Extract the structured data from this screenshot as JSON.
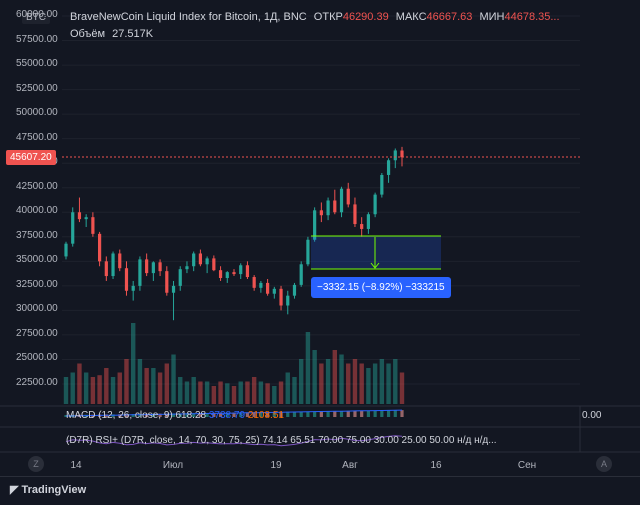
{
  "header": {
    "symbol_badge": "BTC",
    "title": "BraveNewCoin Liquid Index for Bitcoin, 1Д, BNC",
    "open_label": "ОТКР",
    "open_value": "46290.39",
    "high_label": "МАКС",
    "high_value": "46667.63",
    "low_label": "МИН",
    "low_value": "44678.35...",
    "volume_label": "Объём",
    "volume_value": "27.517K"
  },
  "price_axis": [
    "60000.00",
    "57500.00",
    "55000.00",
    "52500.00",
    "50000.00",
    "47500.00",
    "45000.00",
    "42500.00",
    "40000.00",
    "37500.00",
    "35000.00",
    "32500.00",
    "30000.00",
    "27500.00",
    "25000.00",
    "22500.00"
  ],
  "last_price": "45607.20",
  "measure_label": "−3332.15 (−8.92%) −333215",
  "macd_label": "MACD (12, 26, close, 9)",
  "macd_values": [
    "618.28",
    "3738.79",
    "2108.51"
  ],
  "rsi_label": "(D7R) RSI+ (D7R, close, 14, 70, 30, 75, 25)",
  "rsi_values": [
    "74.14",
    "65.51",
    "70.00",
    "75.00",
    "30.00",
    "25.00",
    "50.00",
    "н/д",
    "н/д..."
  ],
  "macd_axis_value": "0.00",
  "time_axis": [
    "14",
    "Июл",
    "19",
    "Авг",
    "16",
    "Сен"
  ],
  "footer_logo": "TradingView",
  "corner_z": "Z",
  "corner_a": "A",
  "colors": {
    "up": "#26a69a",
    "down": "#ef5350",
    "bg": "#131722",
    "accent": "#2962ff"
  },
  "chart_data": {
    "type": "candlestick",
    "candles": [
      [
        35500,
        37000,
        35200,
        36800
      ],
      [
        36800,
        40500,
        36500,
        40000
      ],
      [
        40000,
        41500,
        39000,
        39300
      ],
      [
        39300,
        39800,
        38500,
        39500
      ],
      [
        39500,
        40000,
        37500,
        37800
      ],
      [
        37800,
        38000,
        34500,
        35000
      ],
      [
        35000,
        35500,
        33000,
        33500
      ],
      [
        33500,
        36000,
        33200,
        35800
      ],
      [
        35800,
        36200,
        34000,
        34300
      ],
      [
        34300,
        35000,
        31500,
        32000
      ],
      [
        32000,
        33000,
        31000,
        32500
      ],
      [
        32500,
        35500,
        32000,
        35200
      ],
      [
        35200,
        35800,
        33500,
        33800
      ],
      [
        33800,
        35000,
        33000,
        34900
      ],
      [
        34900,
        35200,
        33500,
        34000
      ],
      [
        34000,
        34500,
        31500,
        31800
      ],
      [
        31800,
        33000,
        29000,
        32500
      ],
      [
        32500,
        34500,
        32000,
        34200
      ],
      [
        34200,
        35000,
        33800,
        34500
      ],
      [
        34500,
        36000,
        34000,
        35800
      ],
      [
        35800,
        36200,
        34500,
        34700
      ],
      [
        34700,
        35500,
        33800,
        35300
      ],
      [
        35300,
        35600,
        34000,
        34100
      ],
      [
        34100,
        34500,
        33000,
        33300
      ],
      [
        33300,
        34000,
        32800,
        33900
      ],
      [
        33900,
        34200,
        33500,
        33700
      ],
      [
        33700,
        34800,
        33200,
        34600
      ],
      [
        34600,
        35000,
        33200,
        33400
      ],
      [
        33400,
        33600,
        32000,
        32300
      ],
      [
        32300,
        33000,
        31800,
        32800
      ],
      [
        32800,
        33200,
        31500,
        31700
      ],
      [
        31700,
        32400,
        31200,
        32200
      ],
      [
        32200,
        32500,
        30000,
        30500
      ],
      [
        30500,
        32000,
        29600,
        31500
      ],
      [
        31500,
        32800,
        31200,
        32600
      ],
      [
        32600,
        35000,
        32400,
        34700
      ],
      [
        34700,
        37500,
        34500,
        37200
      ],
      [
        37200,
        40500,
        37000,
        40200
      ],
      [
        40200,
        41000,
        39000,
        39700
      ],
      [
        39700,
        41500,
        39200,
        41200
      ],
      [
        41200,
        42300,
        39800,
        40000
      ],
      [
        40000,
        42600,
        39500,
        42400
      ],
      [
        42400,
        43000,
        40500,
        40800
      ],
      [
        40800,
        41500,
        38500,
        38800
      ],
      [
        38800,
        39500,
        37500,
        38300
      ],
      [
        38300,
        40000,
        37800,
        39800
      ],
      [
        39800,
        42000,
        39500,
        41800
      ],
      [
        41800,
        44000,
        41500,
        43800
      ],
      [
        43800,
        45500,
        43000,
        45300
      ],
      [
        45300,
        46500,
        44500,
        46300
      ],
      [
        46290,
        46668,
        44678,
        45607
      ]
    ],
    "volumes": [
      3,
      3.5,
      4.5,
      3.5,
      3,
      3.2,
      4,
      3,
      3.5,
      5,
      9,
      5,
      4,
      4,
      3.5,
      4.5,
      5.5,
      3,
      2.5,
      3,
      2.5,
      2.5,
      2,
      2.5,
      2.3,
      2,
      2.5,
      2.5,
      3,
      2.5,
      2.3,
      2,
      2.5,
      3.5,
      3,
      5,
      8,
      6,
      4.5,
      5,
      6,
      5.5,
      4.5,
      5,
      4.5,
      4,
      4.5,
      5,
      4.5,
      5,
      3.5
    ],
    "measure": {
      "from": 37300,
      "to": 33968,
      "change": -3332.15,
      "percent": -8.92
    },
    "ylim": [
      20000,
      61000
    ]
  }
}
